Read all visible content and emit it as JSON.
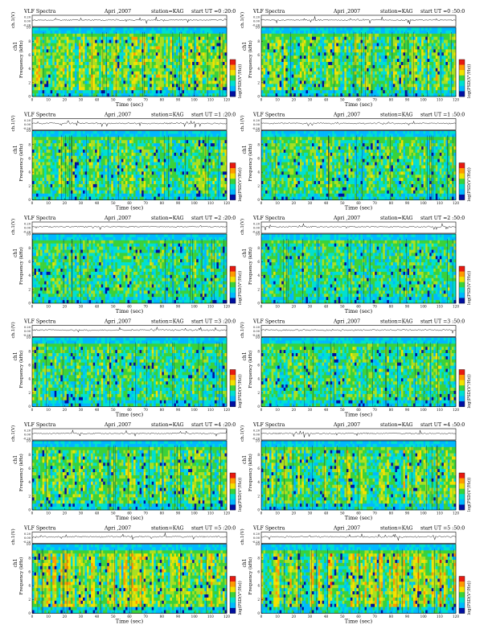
{
  "page": {
    "columns": 2,
    "rows": 6
  },
  "colors": {
    "low": "#0010a0",
    "mid_low": "#00b8ff",
    "mid": "#3ad23a",
    "mid_high": "#f2e200",
    "high": "#e81a10",
    "peak": "#ffffff",
    "trace": "#000000"
  },
  "labels": {
    "title_left": "VLF Spectra",
    "title_mid": "Apri ,2007",
    "station": "station=KAG",
    "start_prefix": "start UT",
    "xlabel": "Time (sec)",
    "trace_ylabel": "ch.1(V)",
    "spec_ylabel": "Frequency (kHz)",
    "ch_label": "ch1",
    "cbar_label": "log(PSD(V²/Hz))",
    "trace_ticks": [
      "0.20",
      "0.00",
      "-0.20"
    ]
  },
  "chart_data": [
    {
      "type": "heatmap",
      "start_time": "=0 :20:0",
      "x": {
        "label": "Time (sec)",
        "lim": [
          0,
          120
        ],
        "ticks": [
          0,
          10,
          20,
          30,
          40,
          50,
          60,
          70,
          80,
          90,
          100,
          110,
          120
        ]
      },
      "y": {
        "label": "Frequency (kHz)",
        "lim": [
          0,
          10
        ],
        "ticks": [
          0,
          2,
          4,
          6,
          8,
          10
        ]
      },
      "trace": {
        "label": "ch.1(V)",
        "lim": [
          -0.2,
          0.2
        ]
      },
      "intensity": 0.72
    },
    {
      "type": "heatmap",
      "start_time": "=0 :50:0",
      "x": {
        "label": "Time (sec)",
        "lim": [
          0,
          120
        ],
        "ticks": [
          0,
          10,
          20,
          30,
          40,
          50,
          60,
          70,
          80,
          90,
          100,
          110,
          120
        ]
      },
      "y": {
        "label": "Frequency (kHz)",
        "lim": [
          0,
          10
        ],
        "ticks": [
          0,
          2,
          4,
          6,
          8,
          10
        ]
      },
      "trace": {
        "label": "ch.1(V)",
        "lim": [
          -0.2,
          0.2
        ]
      },
      "intensity": 0.64
    },
    {
      "type": "heatmap",
      "start_time": "=1 :20:0",
      "x": {
        "label": "Time (sec)",
        "lim": [
          0,
          120
        ],
        "ticks": [
          0,
          10,
          20,
          30,
          40,
          50,
          60,
          70,
          80,
          90,
          100,
          110,
          120
        ]
      },
      "y": {
        "label": "Frequency (kHz)",
        "lim": [
          0,
          10
        ],
        "ticks": [
          0,
          2,
          4,
          6,
          8,
          10
        ]
      },
      "trace": {
        "label": "ch.1(V)",
        "lim": [
          -0.2,
          0.2
        ]
      },
      "intensity": 0.55
    },
    {
      "type": "heatmap",
      "start_time": "=1 :50:0",
      "x": {
        "label": "Time (sec)",
        "lim": [
          0,
          120
        ],
        "ticks": [
          0,
          10,
          20,
          30,
          40,
          50,
          60,
          70,
          80,
          90,
          100,
          110,
          120
        ]
      },
      "y": {
        "label": "Frequency (kHz)",
        "lim": [
          0,
          10
        ],
        "ticks": [
          0,
          2,
          4,
          6,
          8,
          10
        ]
      },
      "trace": {
        "label": "ch.1(V)",
        "lim": [
          -0.2,
          0.2
        ]
      },
      "intensity": 0.5
    },
    {
      "type": "heatmap",
      "start_time": "=2 :20:0",
      "x": {
        "label": "Time (sec)",
        "lim": [
          0,
          120
        ],
        "ticks": [
          0,
          10,
          20,
          30,
          40,
          50,
          60,
          70,
          80,
          90,
          100,
          110,
          120
        ]
      },
      "y": {
        "label": "Frequency (kHz)",
        "lim": [
          0,
          10
        ],
        "ticks": [
          0,
          2,
          4,
          6,
          8,
          10
        ]
      },
      "trace": {
        "label": "ch.1(V)",
        "lim": [
          -0.2,
          0.2
        ]
      },
      "intensity": 0.38
    },
    {
      "type": "heatmap",
      "start_time": "=2 :50:0",
      "x": {
        "label": "Time (sec)",
        "lim": [
          0,
          120
        ],
        "ticks": [
          0,
          10,
          20,
          30,
          40,
          50,
          60,
          70,
          80,
          90,
          100,
          110,
          120
        ]
      },
      "y": {
        "label": "Frequency (kHz)",
        "lim": [
          0,
          10
        ],
        "ticks": [
          0,
          2,
          4,
          6,
          8,
          10
        ]
      },
      "trace": {
        "label": "ch.1(V)",
        "lim": [
          -0.2,
          0.2
        ]
      },
      "intensity": 0.36
    },
    {
      "type": "heatmap",
      "start_time": "=3 :20:0",
      "x": {
        "label": "Time (sec)",
        "lim": [
          0,
          120
        ],
        "ticks": [
          0,
          10,
          20,
          30,
          40,
          50,
          60,
          70,
          80,
          90,
          100,
          110,
          120
        ]
      },
      "y": {
        "label": "Frequency (kHz)",
        "lim": [
          0,
          10
        ],
        "ticks": [
          0,
          2,
          4,
          6,
          8,
          10
        ]
      },
      "trace": {
        "label": "ch.1(V)",
        "lim": [
          -0.2,
          0.2
        ]
      },
      "intensity": 0.44
    },
    {
      "type": "heatmap",
      "start_time": "=3 :50:0",
      "x": {
        "label": "Time (sec)",
        "lim": [
          0,
          120
        ],
        "ticks": [
          0,
          10,
          20,
          30,
          40,
          50,
          60,
          70,
          80,
          90,
          100,
          110,
          120
        ]
      },
      "y": {
        "label": "Frequency (kHz)",
        "lim": [
          0,
          10
        ],
        "ticks": [
          0,
          2,
          4,
          6,
          8,
          10
        ]
      },
      "trace": {
        "label": "ch.1(V)",
        "lim": [
          -0.2,
          0.2
        ]
      },
      "intensity": 0.42
    },
    {
      "type": "heatmap",
      "start_time": "=4 :20:0",
      "x": {
        "label": "Time (sec)",
        "lim": [
          0,
          120
        ],
        "ticks": [
          0,
          10,
          20,
          30,
          40,
          50,
          60,
          70,
          80,
          90,
          100,
          110,
          120
        ]
      },
      "y": {
        "label": "Frequency (kHz)",
        "lim": [
          0,
          10
        ],
        "ticks": [
          0,
          2,
          4,
          6,
          8,
          10
        ]
      },
      "trace": {
        "label": "ch.1(V)",
        "lim": [
          -0.2,
          0.2
        ]
      },
      "intensity": 0.6
    },
    {
      "type": "heatmap",
      "start_time": "=4 :50:0",
      "x": {
        "label": "Time (sec)",
        "lim": [
          0,
          120
        ],
        "ticks": [
          0,
          10,
          20,
          30,
          40,
          50,
          60,
          70,
          80,
          90,
          100,
          110,
          120
        ]
      },
      "y": {
        "label": "Frequency (kHz)",
        "lim": [
          0,
          10
        ],
        "ticks": [
          0,
          2,
          4,
          6,
          8,
          10
        ]
      },
      "trace": {
        "label": "ch.1(V)",
        "lim": [
          -0.2,
          0.2
        ]
      },
      "intensity": 0.66
    },
    {
      "type": "heatmap",
      "start_time": "=5 :20:0",
      "x": {
        "label": "Time (sec)",
        "lim": [
          0,
          120
        ],
        "ticks": [
          0,
          10,
          20,
          30,
          40,
          50,
          60,
          70,
          80,
          90,
          100,
          110,
          120
        ]
      },
      "y": {
        "label": "Frequency (kHz)",
        "lim": [
          0,
          10
        ],
        "ticks": [
          0,
          2,
          4,
          6,
          8,
          10
        ]
      },
      "trace": {
        "label": "ch.1(V)",
        "lim": [
          -0.2,
          0.2
        ]
      },
      "intensity": 0.88
    },
    {
      "type": "heatmap",
      "start_time": "=5 :50:0",
      "x": {
        "label": "Time (sec)",
        "lim": [
          0,
          120
        ],
        "ticks": [
          0,
          10,
          20,
          30,
          40,
          50,
          60,
          70,
          80,
          90,
          100,
          110,
          120
        ]
      },
      "y": {
        "label": "Frequency (kHz)",
        "lim": [
          0,
          10
        ],
        "ticks": [
          0,
          2,
          4,
          6,
          8,
          10
        ]
      },
      "trace": {
        "label": "ch.1(V)",
        "lim": [
          -0.2,
          0.2
        ]
      },
      "intensity": 0.92
    }
  ]
}
